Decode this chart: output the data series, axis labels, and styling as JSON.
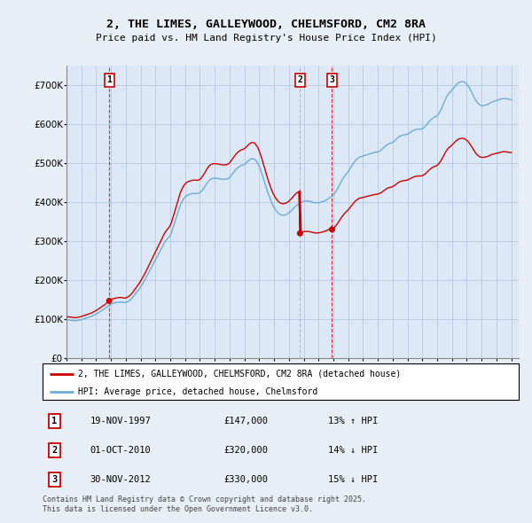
{
  "title_line1": "2, THE LIMES, GALLEYWOOD, CHELMSFORD, CM2 8RA",
  "title_line2": "Price paid vs. HM Land Registry's House Price Index (HPI)",
  "background_color": "#e8eef5",
  "plot_bg_color": "#dce8f5",
  "red_line_color": "#cc0000",
  "blue_line_color": "#6baed6",
  "red_line_label": "2, THE LIMES, GALLEYWOOD, CHELMSFORD, CM2 8RA (detached house)",
  "blue_line_label": "HPI: Average price, detached house, Chelmsford",
  "transactions": [
    {
      "num": 1,
      "date": "19-NOV-1997",
      "price": "£147,000",
      "pct": "13% ↑ HPI",
      "year": 1997.88,
      "vline_color": "#cc0000",
      "vline_style": "--"
    },
    {
      "num": 2,
      "date": "01-OCT-2010",
      "price": "£320,000",
      "pct": "14% ↓ HPI",
      "year": 2010.75,
      "vline_color": "#aaaacc",
      "vline_style": "--"
    },
    {
      "num": 3,
      "date": "30-NOV-2012",
      "price": "£330,000",
      "pct": "15% ↓ HPI",
      "year": 2012.91,
      "vline_color": "#cc0000",
      "vline_style": "--"
    }
  ],
  "transaction_prices": [
    147000,
    320000,
    330000
  ],
  "footer": "Contains HM Land Registry data © Crown copyright and database right 2025.\nThis data is licensed under the Open Government Licence v3.0.",
  "ylim": [
    0,
    750000
  ],
  "yticks": [
    0,
    100000,
    200000,
    300000,
    400000,
    500000,
    600000,
    700000
  ],
  "xlim": [
    1995,
    2025.5
  ],
  "hpi_years": [
    1995.0,
    1995.083,
    1995.167,
    1995.25,
    1995.333,
    1995.417,
    1995.5,
    1995.583,
    1995.667,
    1995.75,
    1995.833,
    1995.917,
    1996.0,
    1996.083,
    1996.167,
    1996.25,
    1996.333,
    1996.417,
    1996.5,
    1996.583,
    1996.667,
    1996.75,
    1996.833,
    1996.917,
    1997.0,
    1997.083,
    1997.167,
    1997.25,
    1997.333,
    1997.417,
    1997.5,
    1997.583,
    1997.667,
    1997.75,
    1997.833,
    1997.917,
    1998.0,
    1998.083,
    1998.167,
    1998.25,
    1998.333,
    1998.417,
    1998.5,
    1998.583,
    1998.667,
    1998.75,
    1998.833,
    1998.917,
    1999.0,
    1999.083,
    1999.167,
    1999.25,
    1999.333,
    1999.417,
    1999.5,
    1999.583,
    1999.667,
    1999.75,
    1999.833,
    1999.917,
    2000.0,
    2000.083,
    2000.167,
    2000.25,
    2000.333,
    2000.417,
    2000.5,
    2000.583,
    2000.667,
    2000.75,
    2000.833,
    2000.917,
    2001.0,
    2001.083,
    2001.167,
    2001.25,
    2001.333,
    2001.417,
    2001.5,
    2001.583,
    2001.667,
    2001.75,
    2001.833,
    2001.917,
    2002.0,
    2002.083,
    2002.167,
    2002.25,
    2002.333,
    2002.417,
    2002.5,
    2002.583,
    2002.667,
    2002.75,
    2002.833,
    2002.917,
    2003.0,
    2003.083,
    2003.167,
    2003.25,
    2003.333,
    2003.417,
    2003.5,
    2003.583,
    2003.667,
    2003.75,
    2003.833,
    2003.917,
    2004.0,
    2004.083,
    2004.167,
    2004.25,
    2004.333,
    2004.417,
    2004.5,
    2004.583,
    2004.667,
    2004.75,
    2004.833,
    2004.917,
    2005.0,
    2005.083,
    2005.167,
    2005.25,
    2005.333,
    2005.417,
    2005.5,
    2005.583,
    2005.667,
    2005.75,
    2005.833,
    2005.917,
    2006.0,
    2006.083,
    2006.167,
    2006.25,
    2006.333,
    2006.417,
    2006.5,
    2006.583,
    2006.667,
    2006.75,
    2006.833,
    2006.917,
    2007.0,
    2007.083,
    2007.167,
    2007.25,
    2007.333,
    2007.417,
    2007.5,
    2007.583,
    2007.667,
    2007.75,
    2007.833,
    2007.917,
    2008.0,
    2008.083,
    2008.167,
    2008.25,
    2008.333,
    2008.417,
    2008.5,
    2008.583,
    2008.667,
    2008.75,
    2008.833,
    2008.917,
    2009.0,
    2009.083,
    2009.167,
    2009.25,
    2009.333,
    2009.417,
    2009.5,
    2009.583,
    2009.667,
    2009.75,
    2009.833,
    2009.917,
    2010.0,
    2010.083,
    2010.167,
    2010.25,
    2010.333,
    2010.417,
    2010.5,
    2010.583,
    2010.667,
    2010.75,
    2010.833,
    2010.917,
    2011.0,
    2011.083,
    2011.167,
    2011.25,
    2011.333,
    2011.417,
    2011.5,
    2011.583,
    2011.667,
    2011.75,
    2011.833,
    2011.917,
    2012.0,
    2012.083,
    2012.167,
    2012.25,
    2012.333,
    2012.417,
    2012.5,
    2012.583,
    2012.667,
    2012.75,
    2012.833,
    2012.917,
    2013.0,
    2013.083,
    2013.167,
    2013.25,
    2013.333,
    2013.417,
    2013.5,
    2013.583,
    2013.667,
    2013.75,
    2013.833,
    2013.917,
    2014.0,
    2014.083,
    2014.167,
    2014.25,
    2014.333,
    2014.417,
    2014.5,
    2014.583,
    2014.667,
    2014.75,
    2014.833,
    2014.917,
    2015.0,
    2015.083,
    2015.167,
    2015.25,
    2015.333,
    2015.417,
    2015.5,
    2015.583,
    2015.667,
    2015.75,
    2015.833,
    2015.917,
    2016.0,
    2016.083,
    2016.167,
    2016.25,
    2016.333,
    2016.417,
    2016.5,
    2016.583,
    2016.667,
    2016.75,
    2016.833,
    2016.917,
    2017.0,
    2017.083,
    2017.167,
    2017.25,
    2017.333,
    2017.417,
    2017.5,
    2017.583,
    2017.667,
    2017.75,
    2017.833,
    2017.917,
    2018.0,
    2018.083,
    2018.167,
    2018.25,
    2018.333,
    2018.417,
    2018.5,
    2018.583,
    2018.667,
    2018.75,
    2018.833,
    2018.917,
    2019.0,
    2019.083,
    2019.167,
    2019.25,
    2019.333,
    2019.417,
    2019.5,
    2019.583,
    2019.667,
    2019.75,
    2019.833,
    2019.917,
    2020.0,
    2020.083,
    2020.167,
    2020.25,
    2020.333,
    2020.417,
    2020.5,
    2020.583,
    2020.667,
    2020.75,
    2020.833,
    2020.917,
    2021.0,
    2021.083,
    2021.167,
    2021.25,
    2021.333,
    2021.417,
    2021.5,
    2021.583,
    2021.667,
    2021.75,
    2021.833,
    2021.917,
    2022.0,
    2022.083,
    2022.167,
    2022.25,
    2022.333,
    2022.417,
    2022.5,
    2022.583,
    2022.667,
    2022.75,
    2022.833,
    2022.917,
    2023.0,
    2023.083,
    2023.167,
    2023.25,
    2023.333,
    2023.417,
    2023.5,
    2023.583,
    2023.667,
    2023.75,
    2023.833,
    2023.917,
    2024.0,
    2024.083,
    2024.167,
    2024.25,
    2024.333,
    2024.417,
    2024.5,
    2024.583,
    2024.667,
    2024.75,
    2024.833,
    2024.917,
    2025.0
  ],
  "hpi_values": [
    98000,
    98200,
    97800,
    97500,
    97000,
    96800,
    96500,
    96000,
    96500,
    97000,
    97500,
    98000,
    99000,
    100000,
    101000,
    102000,
    103000,
    104000,
    105000,
    106000,
    107000,
    108500,
    110000,
    111500,
    113000,
    115000,
    117000,
    119000,
    121000,
    123000,
    125000,
    127000,
    129500,
    132000,
    134000,
    136000,
    138000,
    140000,
    141000,
    142000,
    142500,
    143000,
    143500,
    144000,
    144000,
    143500,
    143000,
    142500,
    143000,
    144000,
    146000,
    148000,
    151000,
    154000,
    158000,
    162000,
    166000,
    170000,
    174000,
    178000,
    183000,
    188000,
    193000,
    198000,
    204000,
    210000,
    216000,
    222000,
    228000,
    234000,
    240000,
    246000,
    252000,
    258000,
    264000,
    270000,
    276000,
    282000,
    288000,
    294000,
    299000,
    303000,
    307000,
    310000,
    315000,
    322000,
    332000,
    342000,
    352000,
    362000,
    372000,
    382000,
    391000,
    398000,
    404000,
    409000,
    413000,
    416000,
    418000,
    419000,
    420000,
    421000,
    421500,
    422000,
    422000,
    422000,
    422000,
    422000,
    424000,
    427000,
    431000,
    435000,
    440000,
    445000,
    450000,
    454000,
    457000,
    459000,
    460000,
    461000,
    461000,
    461000,
    460500,
    460000,
    459500,
    459000,
    458500,
    458000,
    458000,
    458500,
    459000,
    460500,
    463000,
    467000,
    471000,
    475000,
    479000,
    483000,
    486000,
    489000,
    491000,
    493000,
    494000,
    495000,
    497000,
    499000,
    502000,
    505000,
    508000,
    510000,
    511000,
    511000,
    510000,
    507000,
    503000,
    498000,
    491000,
    483000,
    474000,
    464000,
    454000,
    444000,
    434000,
    424000,
    415000,
    407000,
    399000,
    392000,
    386000,
    381000,
    377000,
    373000,
    370000,
    368000,
    367000,
    366000,
    366500,
    367000,
    368000,
    370000,
    372000,
    375000,
    378000,
    381000,
    385000,
    388000,
    391000,
    393000,
    395000,
    397000,
    399000,
    401000,
    402000,
    402500,
    403000,
    403000,
    402500,
    402000,
    401000,
    400000,
    399000,
    398500,
    398000,
    398000,
    398500,
    399000,
    400000,
    401000,
    402000,
    403000,
    405000,
    407000,
    409000,
    411000,
    413000,
    415000,
    418000,
    422000,
    427000,
    432000,
    438000,
    444000,
    450000,
    456000,
    461000,
    466000,
    470000,
    474000,
    478000,
    483000,
    488000,
    493000,
    498000,
    503000,
    507000,
    510000,
    513000,
    515000,
    516000,
    517000,
    518000,
    519000,
    520000,
    521000,
    522000,
    523000,
    524000,
    525000,
    526000,
    527000,
    527500,
    528000,
    529000,
    530000,
    532000,
    534000,
    537000,
    540000,
    543000,
    546000,
    548000,
    549500,
    550500,
    551000,
    553000,
    555000,
    558000,
    561000,
    564000,
    567000,
    569000,
    570000,
    571000,
    572000,
    572500,
    573000,
    574000,
    576000,
    578000,
    580000,
    582000,
    584000,
    585000,
    586000,
    586500,
    587000,
    587000,
    587000,
    588000,
    590000,
    593000,
    596000,
    600000,
    604000,
    608000,
    611000,
    614000,
    616000,
    618000,
    619000,
    621000,
    625000,
    630000,
    636000,
    643000,
    650000,
    658000,
    665000,
    671000,
    676000,
    680000,
    683000,
    687000,
    691000,
    695000,
    699000,
    702000,
    705000,
    707000,
    708000,
    708500,
    708000,
    707000,
    705000,
    702000,
    698000,
    693000,
    687000,
    681000,
    674000,
    668000,
    662000,
    657000,
    653000,
    650000,
    648000,
    647000,
    647000,
    647500,
    648000,
    649000,
    650000,
    652000,
    654000,
    656000,
    657000,
    658000,
    659000,
    660000,
    661000,
    662000,
    663000,
    664000,
    665000,
    665500,
    665000,
    664500,
    664000,
    663500,
    663000,
    662000
  ]
}
